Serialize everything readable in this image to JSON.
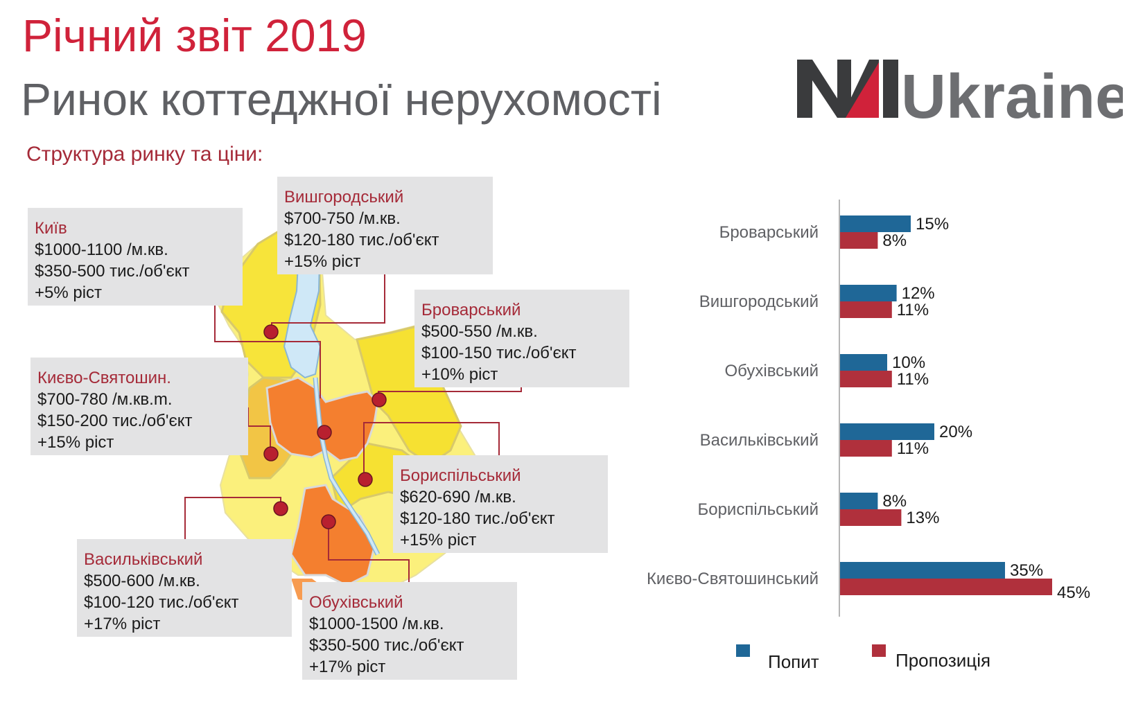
{
  "header": {
    "title": "Річний звіт 2019",
    "subtitle": "Ринок коттеджної нерухомості",
    "section": "Структура ринку та ціни:"
  },
  "logo": {
    "text": "NAIUkraine",
    "brand_red": "#d0223a",
    "brand_dark": "#3a3b3d",
    "brand_gray": "#6d6e71"
  },
  "colors": {
    "accent_red": "#d0223a",
    "label_red": "#a52a38",
    "demand": "#1f6797",
    "supply": "#b0303c",
    "map_yellow": "#fbee6b",
    "map_orange": "#f3883a",
    "marker": "#b8202f"
  },
  "regions": [
    {
      "name": "Київ",
      "price_m2": "$1000-1100 /м.кв.",
      "price_obj": "$350-500 тис./об'єкт",
      "growth": "+5% ріст"
    },
    {
      "name": "Вишгородський",
      "price_m2": "$700-750 /м.кв.",
      "price_obj": "$120-180 тис./об'єкт",
      "growth": "+15% ріст"
    },
    {
      "name": "Броварський",
      "price_m2": "$500-550 /м.кв.",
      "price_obj": "$100-150 тис./об'єкт",
      "growth": "+10% ріст"
    },
    {
      "name": "Києво-Святошин.",
      "price_m2": "$700-780 /м.кв.m.",
      "price_obj": "$150-200 тис./об'єкт",
      "growth": "+15% ріст"
    },
    {
      "name": "Бориспільський",
      "price_m2": "$620-690 /м.кв.",
      "price_obj": "$120-180 тис./об'єкт",
      "growth": "+15% ріст"
    },
    {
      "name": "Васильківський",
      "price_m2": "$500-600 /м.кв.",
      "price_obj": "$100-120 тис./об'єкт",
      "growth": "+17% ріст"
    },
    {
      "name": "Обухівський",
      "price_m2": "$1000-1500 /м.кв.",
      "price_obj": "$350-500 тис./об'єкт",
      "growth": "+17% ріст"
    }
  ],
  "chart_data": {
    "type": "bar",
    "orientation": "horizontal",
    "categories": [
      "Броварський",
      "Вишгородський",
      "Обухівський",
      "Васильківський",
      "Бориспільський",
      "Києво-Святошинський"
    ],
    "series": [
      {
        "name": "Попит",
        "values": [
          15,
          12,
          10,
          20,
          8,
          35
        ],
        "color": "#1f6797"
      },
      {
        "name": "Пропозиція",
        "values": [
          8,
          11,
          11,
          11,
          13,
          45
        ],
        "color": "#b0303c"
      }
    ],
    "value_suffix": "%",
    "xlim": [
      0,
      50
    ],
    "grid": false,
    "legend": "bottom"
  }
}
